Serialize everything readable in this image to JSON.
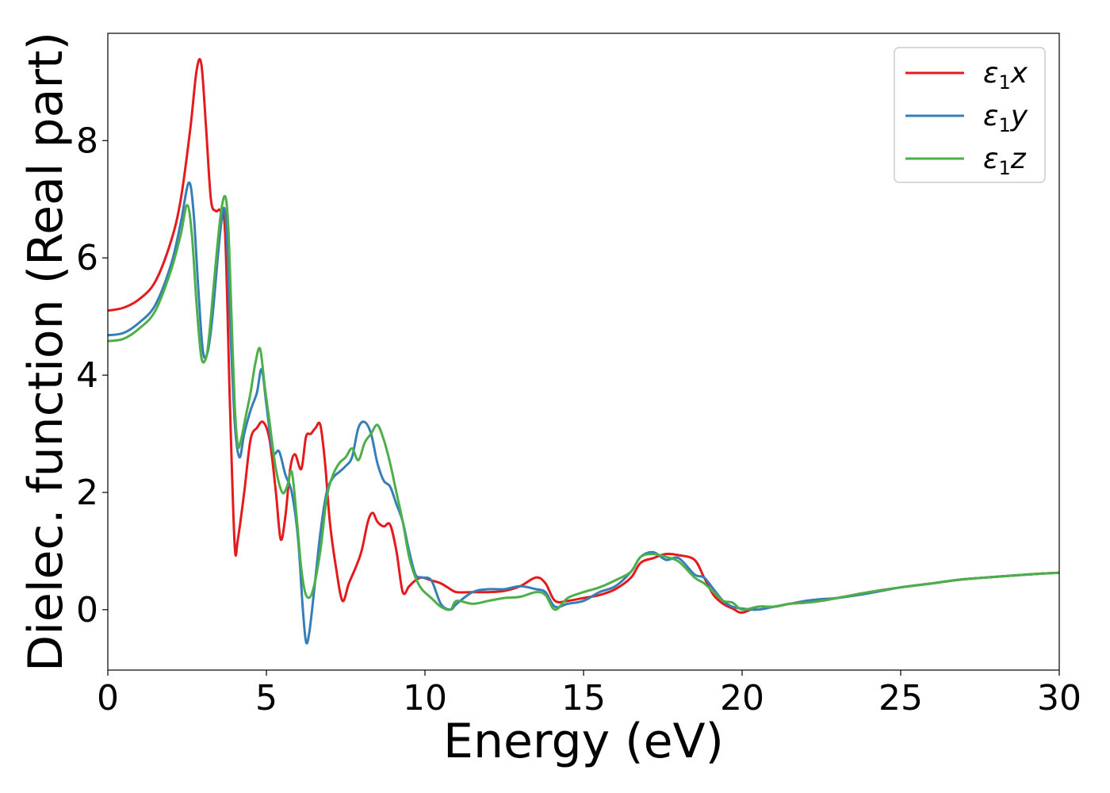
{
  "chart_data": {
    "type": "line",
    "title": "",
    "xlabel": "Energy (eV)",
    "ylabel": "Dielec. function (Real part)",
    "xlim": [
      0,
      30
    ],
    "ylim": [
      -1.03,
      9.83
    ],
    "xticks": [
      0,
      5,
      10,
      15,
      20,
      25,
      30
    ],
    "yticks": [
      0,
      2,
      4,
      6,
      8
    ],
    "grid": false,
    "legend_position": "top-right",
    "series": [
      {
        "name": "ε₁x",
        "legend_base": "ε",
        "legend_sub": "1",
        "legend_suffix": "x",
        "color": "#e41a1c",
        "x": [
          0,
          0.5,
          1.0,
          1.5,
          2.0,
          2.3,
          2.6,
          2.8,
          2.95,
          3.1,
          3.25,
          3.4,
          3.55,
          3.7,
          3.85,
          4.0,
          4.1,
          4.3,
          4.5,
          4.7,
          4.9,
          5.1,
          5.3,
          5.45,
          5.6,
          5.75,
          5.9,
          6.1,
          6.25,
          6.4,
          6.55,
          6.7,
          6.85,
          7.0,
          7.2,
          7.4,
          7.6,
          7.8,
          8.0,
          8.2,
          8.35,
          8.5,
          8.7,
          8.9,
          9.1,
          9.3,
          9.5,
          9.7,
          9.9,
          10.2,
          10.5,
          10.8,
          11.0,
          11.5,
          12.0,
          12.5,
          13.0,
          13.5,
          13.8,
          14.1,
          14.5,
          15.0,
          15.5,
          16.0,
          16.5,
          16.8,
          17.2,
          17.6,
          18.0,
          18.5,
          18.8,
          19.1,
          19.4,
          19.7,
          20.0,
          20.5,
          21.0,
          21.5,
          22.0,
          22.5,
          23.0,
          24.0,
          25.0,
          26.0,
          27.0,
          28.0,
          29.0,
          30.0
        ],
        "y": [
          5.1,
          5.15,
          5.3,
          5.6,
          6.3,
          7.0,
          8.2,
          9.2,
          9.3,
          8.2,
          7.0,
          6.8,
          6.8,
          6.4,
          3.5,
          1.1,
          1.2,
          2.0,
          2.9,
          3.1,
          3.2,
          2.9,
          2.0,
          1.2,
          1.6,
          2.4,
          2.65,
          2.4,
          2.95,
          3.0,
          3.1,
          3.15,
          2.5,
          1.5,
          0.7,
          0.15,
          0.45,
          0.7,
          1.0,
          1.5,
          1.65,
          1.5,
          1.42,
          1.45,
          1.0,
          0.3,
          0.4,
          0.5,
          0.55,
          0.5,
          0.45,
          0.35,
          0.3,
          0.3,
          0.3,
          0.32,
          0.4,
          0.55,
          0.45,
          0.15,
          0.15,
          0.2,
          0.25,
          0.35,
          0.55,
          0.8,
          0.88,
          0.95,
          0.93,
          0.85,
          0.55,
          0.25,
          0.1,
          0.02,
          -0.05,
          0.05,
          0.05,
          0.1,
          0.12,
          0.15,
          0.2,
          0.3,
          0.38,
          0.45,
          0.52,
          0.56,
          0.6,
          0.63
        ]
      },
      {
        "name": "ε₁y",
        "legend_base": "ε",
        "legend_sub": "1",
        "legend_suffix": "y",
        "color": "#377eb8",
        "x": [
          0,
          0.5,
          1.0,
          1.5,
          2.0,
          2.3,
          2.55,
          2.7,
          2.85,
          3.0,
          3.15,
          3.3,
          3.5,
          3.65,
          3.75,
          3.85,
          4.0,
          4.15,
          4.3,
          4.5,
          4.7,
          4.85,
          5.0,
          5.2,
          5.4,
          5.6,
          5.8,
          6.0,
          6.15,
          6.25,
          6.35,
          6.5,
          6.7,
          6.9,
          7.1,
          7.3,
          7.5,
          7.7,
          7.9,
          8.1,
          8.3,
          8.5,
          8.7,
          8.9,
          9.1,
          9.3,
          9.5,
          9.7,
          9.9,
          10.2,
          10.5,
          10.8,
          11.0,
          11.5,
          12.0,
          12.5,
          13.0,
          13.5,
          13.8,
          14.1,
          14.5,
          15.0,
          15.5,
          16.0,
          16.5,
          16.8,
          17.2,
          17.6,
          18.0,
          18.5,
          18.8,
          19.1,
          19.4,
          19.7,
          20.0,
          20.5,
          21.0,
          21.5,
          22.0,
          22.5,
          23.0,
          24.0,
          25.0,
          26.0,
          27.0,
          28.0,
          29.0,
          30.0
        ],
        "y": [
          4.68,
          4.72,
          4.9,
          5.2,
          5.9,
          6.6,
          7.28,
          6.8,
          5.5,
          4.4,
          4.4,
          5.0,
          6.2,
          6.85,
          6.4,
          5.0,
          3.2,
          2.6,
          3.0,
          3.4,
          3.7,
          4.1,
          3.5,
          2.7,
          2.7,
          2.3,
          2.0,
          1.2,
          0.0,
          -0.55,
          -0.4,
          0.3,
          1.3,
          2.0,
          2.25,
          2.35,
          2.45,
          2.6,
          3.1,
          3.2,
          3.0,
          2.5,
          2.2,
          2.1,
          1.8,
          1.5,
          1.0,
          0.6,
          0.55,
          0.5,
          0.1,
          0.0,
          0.1,
          0.3,
          0.35,
          0.35,
          0.4,
          0.35,
          0.3,
          0.05,
          0.1,
          0.15,
          0.3,
          0.4,
          0.65,
          0.9,
          0.98,
          0.85,
          0.88,
          0.6,
          0.55,
          0.35,
          0.15,
          0.05,
          0.02,
          0.0,
          0.05,
          0.1,
          0.15,
          0.18,
          0.2,
          0.28,
          0.38,
          0.45,
          0.52,
          0.56,
          0.6,
          0.63
        ]
      },
      {
        "name": "ε₁z",
        "legend_base": "ε",
        "legend_sub": "1",
        "legend_suffix": "z",
        "color": "#4daf4a",
        "x": [
          0,
          0.5,
          1.0,
          1.5,
          2.0,
          2.3,
          2.5,
          2.65,
          2.8,
          2.95,
          3.1,
          3.2,
          3.35,
          3.55,
          3.7,
          3.8,
          3.9,
          4.0,
          4.1,
          4.2,
          4.35,
          4.5,
          4.65,
          4.8,
          4.95,
          5.1,
          5.3,
          5.5,
          5.65,
          5.8,
          5.95,
          6.1,
          6.25,
          6.45,
          6.7,
          6.9,
          7.1,
          7.3,
          7.5,
          7.7,
          7.9,
          8.1,
          8.3,
          8.5,
          8.7,
          8.9,
          9.1,
          9.3,
          9.5,
          9.7,
          9.9,
          10.2,
          10.5,
          10.8,
          11.0,
          11.5,
          12.0,
          12.5,
          13.0,
          13.5,
          13.8,
          14.1,
          14.5,
          15.0,
          15.5,
          16.0,
          16.5,
          16.8,
          17.2,
          17.6,
          18.0,
          18.5,
          18.8,
          19.1,
          19.4,
          19.7,
          20.0,
          20.5,
          21.0,
          21.5,
          22.0,
          22.5,
          23.0,
          24.0,
          25.0,
          26.0,
          27.0,
          28.0,
          29.0,
          30.0
        ],
        "y": [
          4.58,
          4.62,
          4.8,
          5.1,
          5.8,
          6.4,
          6.9,
          6.4,
          5.2,
          4.3,
          4.3,
          4.7,
          5.6,
          6.7,
          7.05,
          6.5,
          5.0,
          3.5,
          2.8,
          2.9,
          3.3,
          3.7,
          4.2,
          4.45,
          3.8,
          3.2,
          2.4,
          2.0,
          2.1,
          2.35,
          1.6,
          0.7,
          0.25,
          0.3,
          1.0,
          1.9,
          2.3,
          2.5,
          2.6,
          2.75,
          2.55,
          2.85,
          3.0,
          3.15,
          2.9,
          2.5,
          2.0,
          1.5,
          0.9,
          0.55,
          0.35,
          0.2,
          0.05,
          0.0,
          0.15,
          0.1,
          0.15,
          0.2,
          0.22,
          0.3,
          0.25,
          0.0,
          0.2,
          0.3,
          0.38,
          0.5,
          0.65,
          0.9,
          0.95,
          0.9,
          0.82,
          0.55,
          0.45,
          0.3,
          0.15,
          0.12,
          0.0,
          0.05,
          0.05,
          0.1,
          0.12,
          0.15,
          0.2,
          0.3,
          0.38,
          0.45,
          0.52,
          0.56,
          0.6,
          0.63
        ]
      }
    ]
  }
}
